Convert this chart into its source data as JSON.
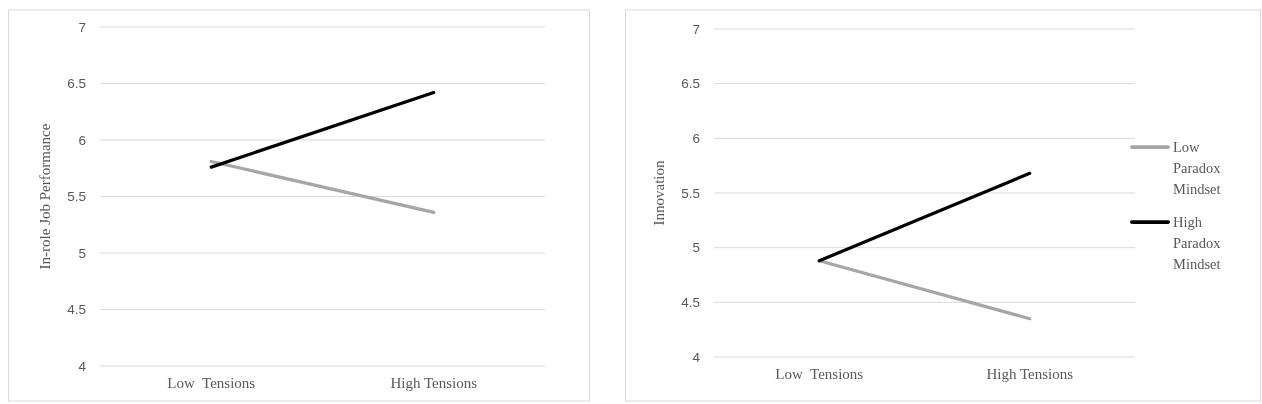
{
  "chart_data": [
    {
      "type": "line",
      "ylabel": "In-role Job Performance",
      "categories": [
        "Low  Tensions",
        "High Tensions"
      ],
      "ylim": [
        4,
        7
      ],
      "yticks": [
        4,
        4.5,
        5,
        5.5,
        6,
        6.5,
        7
      ],
      "grid": "y",
      "legend": false,
      "series": [
        {
          "color": "#a6a6a6",
          "values": [
            5.81,
            5.36
          ]
        },
        {
          "color": "#000000",
          "values": [
            5.76,
            6.42
          ]
        }
      ]
    },
    {
      "type": "line",
      "ylabel": "Innovation",
      "categories": [
        "Low  Tensions",
        "High Tensions"
      ],
      "ylim": [
        4,
        7
      ],
      "yticks": [
        4,
        4.5,
        5,
        5.5,
        6,
        6.5,
        7
      ],
      "grid": "y",
      "legend": "right",
      "series": [
        {
          "name": "Low Paradox Mindset",
          "color": "#a6a6a6",
          "values": [
            4.88,
            4.35
          ]
        },
        {
          "name": "High Paradox Mindset",
          "color": "#000000",
          "values": [
            4.88,
            5.68
          ]
        }
      ]
    }
  ]
}
